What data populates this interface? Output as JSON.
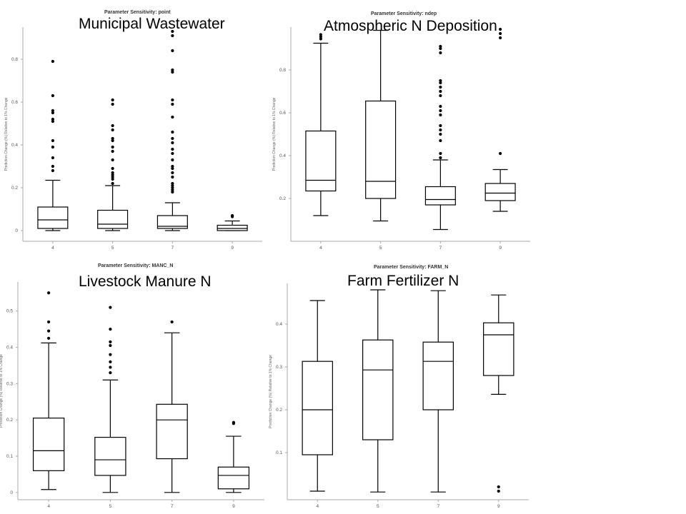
{
  "chart_data": [
    {
      "type": "box",
      "title": "Municipal Wastewater",
      "subtitle": "Parameter Sensitivity:  point",
      "ylabel": "Prediction Change (%) Relative to 1% Change",
      "xlabel": "",
      "categories": [
        "4",
        "5",
        "7",
        "9"
      ],
      "yticks": [
        "0",
        "0.2",
        "0.4",
        "0.6",
        "0.8"
      ],
      "ylim": [
        -0.05,
        0.95
      ],
      "grid": false,
      "boxes": [
        {
          "min": 0.0,
          "q1": 0.01,
          "median": 0.05,
          "q3": 0.11,
          "max": 0.235,
          "outliers": [
            0.28,
            0.3,
            0.34,
            0.39,
            0.42,
            0.51,
            0.52,
            0.55,
            0.56,
            0.63,
            0.79
          ]
        },
        {
          "min": 0.0,
          "q1": 0.01,
          "median": 0.03,
          "q3": 0.095,
          "max": 0.21,
          "outliers": [
            0.22,
            0.24,
            0.25,
            0.26,
            0.27,
            0.29,
            0.33,
            0.37,
            0.39,
            0.42,
            0.43,
            0.47,
            0.49,
            0.59,
            0.61
          ]
        },
        {
          "min": 0.0,
          "q1": 0.01,
          "median": 0.02,
          "q3": 0.07,
          "max": 0.13,
          "outliers": [
            0.18,
            0.19,
            0.2,
            0.21,
            0.22,
            0.25,
            0.27,
            0.29,
            0.3,
            0.33,
            0.36,
            0.38,
            0.41,
            0.43,
            0.46,
            0.53,
            0.59,
            0.61,
            0.74,
            0.75,
            0.84,
            0.91,
            0.93
          ]
        },
        {
          "min": 0.0,
          "q1": 0.0,
          "median": 0.01,
          "q3": 0.025,
          "max": 0.045,
          "outliers": [
            0.065,
            0.07
          ]
        }
      ]
    },
    {
      "type": "box",
      "title": "Atmospheric N Deposition",
      "subtitle": "Parameter Sensitivity:  ndep",
      "ylabel": "Prediction Change (%) Relative to 1% Change",
      "xlabel": "",
      "categories": [
        "4",
        "5",
        "7",
        "9"
      ],
      "yticks": [
        "0.2",
        "0.4",
        "0.6",
        "0.8"
      ],
      "ylim": [
        0.0,
        1.0
      ],
      "grid": false,
      "boxes": [
        {
          "min": 0.12,
          "q1": 0.235,
          "median": 0.285,
          "q3": 0.515,
          "max": 0.925,
          "outliers": [
            0.945,
            0.955,
            0.965
          ]
        },
        {
          "min": 0.095,
          "q1": 0.2,
          "median": 0.28,
          "q3": 0.655,
          "max": 0.985,
          "outliers": []
        },
        {
          "min": 0.055,
          "q1": 0.17,
          "median": 0.195,
          "q3": 0.255,
          "max": 0.38,
          "outliers": [
            0.39,
            0.41,
            0.47,
            0.5,
            0.52,
            0.54,
            0.59,
            0.61,
            0.63,
            0.68,
            0.7,
            0.72,
            0.74,
            0.75,
            0.88,
            0.9,
            0.91
          ]
        },
        {
          "min": 0.14,
          "q1": 0.19,
          "median": 0.225,
          "q3": 0.27,
          "max": 0.335,
          "outliers": [
            0.41,
            0.95,
            0.97,
            0.99
          ]
        }
      ]
    },
    {
      "type": "box",
      "title": "Livestock Manure N",
      "subtitle": "Parameter Sensitivity:  MANC_N",
      "ylabel": "Prediction Change (%) Relative to 1% Change",
      "xlabel": "",
      "categories": [
        "4",
        "5",
        "7",
        "9"
      ],
      "yticks": [
        "0",
        "0.1",
        "0.2",
        "0.3",
        "0.4",
        "0.5"
      ],
      "ylim": [
        -0.02,
        0.58
      ],
      "grid": false,
      "boxes": [
        {
          "min": 0.008,
          "q1": 0.06,
          "median": 0.115,
          "q3": 0.205,
          "max": 0.412,
          "outliers": [
            0.425,
            0.445,
            0.47,
            0.55
          ]
        },
        {
          "min": 0.0,
          "q1": 0.047,
          "median": 0.09,
          "q3": 0.152,
          "max": 0.31,
          "outliers": [
            0.33,
            0.345,
            0.36,
            0.38,
            0.405,
            0.415,
            0.45,
            0.51
          ]
        },
        {
          "min": 0.0,
          "q1": 0.093,
          "median": 0.2,
          "q3": 0.243,
          "max": 0.44,
          "outliers": [
            0.47
          ]
        },
        {
          "min": 0.0,
          "q1": 0.01,
          "median": 0.047,
          "q3": 0.07,
          "max": 0.155,
          "outliers": [
            0.19,
            0.193
          ]
        }
      ]
    },
    {
      "type": "box",
      "title": "Farm Fertilizer N",
      "subtitle": "Parameter Sensitivity:  FARM_N",
      "ylabel": "Prediction Change (%) Relative to 1% Change",
      "xlabel": "",
      "categories": [
        "4",
        "5",
        "7",
        "9"
      ],
      "yticks": [
        "0.1",
        "0.2",
        "0.3",
        "0.4"
      ],
      "ylim": [
        -0.01,
        0.495
      ],
      "grid": false,
      "boxes": [
        {
          "min": 0.01,
          "q1": 0.095,
          "median": 0.2,
          "q3": 0.313,
          "max": 0.455,
          "outliers": []
        },
        {
          "min": 0.008,
          "q1": 0.13,
          "median": 0.293,
          "q3": 0.363,
          "max": 0.48,
          "outliers": []
        },
        {
          "min": 0.008,
          "q1": 0.2,
          "median": 0.313,
          "q3": 0.358,
          "max": 0.478,
          "outliers": []
        },
        {
          "min": 0.236,
          "q1": 0.28,
          "median": 0.375,
          "q3": 0.403,
          "max": 0.468,
          "outliers": [
            0.01,
            0.02
          ]
        }
      ]
    }
  ]
}
